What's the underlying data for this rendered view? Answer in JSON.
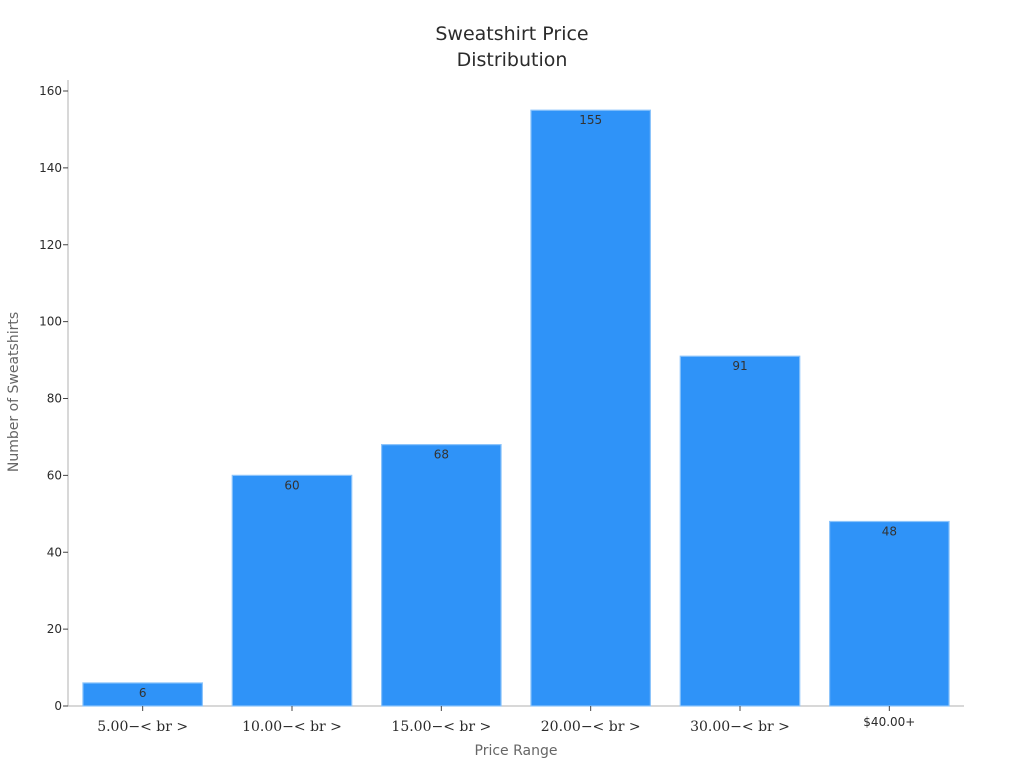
{
  "chart_data": {
    "type": "bar",
    "title_lines": [
      "Sweatshirt Price",
      "Distribution"
    ],
    "xlabel": "Price Range",
    "ylabel": "Number of Sweatshirts",
    "categories": [
      "5.00−< br >",
      "10.00−< br >",
      "15.00−< br >",
      "20.00−< br >",
      "30.00−< br >",
      "$40.00+"
    ],
    "category_styles": [
      "math",
      "math",
      "math",
      "math",
      "math",
      "plain"
    ],
    "values": [
      6,
      60,
      68,
      155,
      91,
      48
    ],
    "ylim": [
      0,
      160
    ],
    "yticks": [
      0,
      20,
      40,
      60,
      80,
      100,
      120,
      140,
      160
    ],
    "grid": false,
    "legend": "none",
    "colors": {
      "bar_fill": "#2f93f8",
      "bar_stroke": "#8cc4fb",
      "axis": "#b0b0b0"
    }
  }
}
